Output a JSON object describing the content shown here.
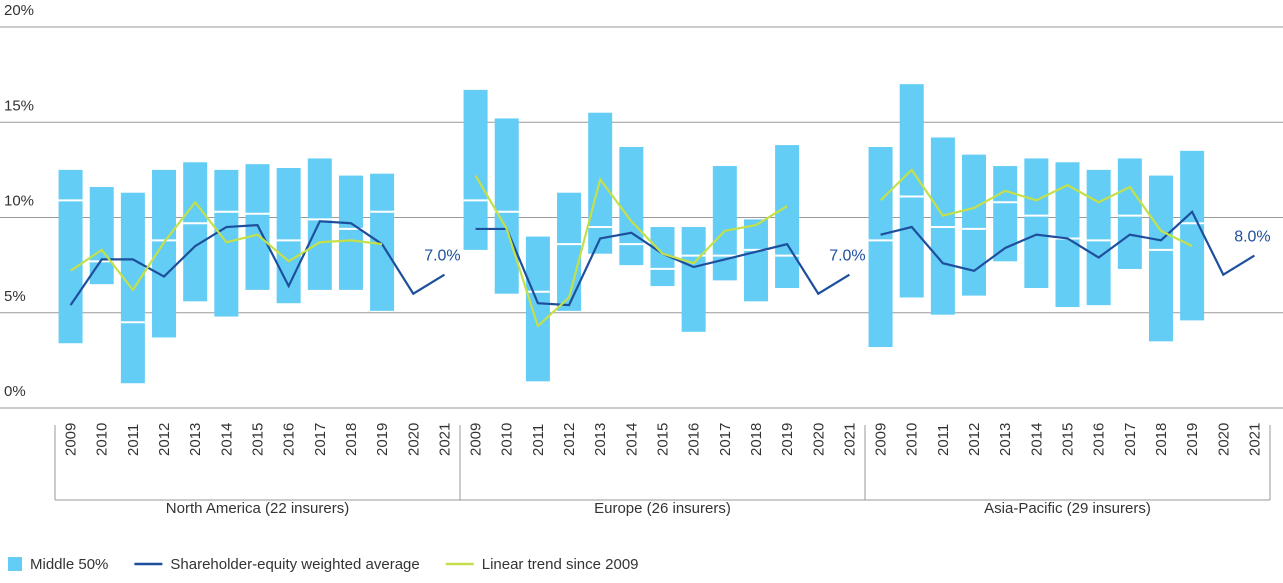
{
  "chart_data": {
    "type": "floating-bar-line",
    "ylim": [
      0,
      20
    ],
    "yticks": [
      {
        "value": 0,
        "label": "0%"
      },
      {
        "value": 5,
        "label": "5%"
      },
      {
        "value": 10,
        "label": "10%"
      },
      {
        "value": 15,
        "label": "15%"
      },
      {
        "value": 20,
        "label": "20%"
      }
    ],
    "grid": true,
    "groups": [
      {
        "label": "North America (22 insurers)",
        "categories": [
          "2009",
          "2010",
          "2011",
          "2012",
          "2013",
          "2014",
          "2015",
          "2016",
          "2017",
          "2018",
          "2019",
          "2020",
          "2021"
        ]
      },
      {
        "label": "Europe (26 insurers)",
        "categories": [
          "2009",
          "2010",
          "2011",
          "2012",
          "2013",
          "2014",
          "2015",
          "2016",
          "2017",
          "2018",
          "2019",
          "2020",
          "2021"
        ]
      },
      {
        "label": "Asia-Pacific (29 insurers)",
        "categories": [
          "2009",
          "2010",
          "2011",
          "2012",
          "2013",
          "2014",
          "2015",
          "2016",
          "2017",
          "2018",
          "2019",
          "2020",
          "2021"
        ]
      }
    ],
    "series": [
      {
        "name": "Middle 50%",
        "type": "range",
        "color": "#63cdf5",
        "low": [
          [
            3.4,
            6.5,
            1.3,
            3.7,
            5.6,
            4.8,
            6.2,
            5.5,
            6.2,
            6.2,
            5.1,
            null,
            null
          ],
          [
            8.3,
            6.0,
            1.4,
            5.1,
            8.1,
            7.5,
            6.4,
            4.0,
            6.7,
            5.6,
            6.3,
            null,
            null
          ],
          [
            3.2,
            5.8,
            4.9,
            5.9,
            7.7,
            6.3,
            5.3,
            5.4,
            7.3,
            3.5,
            4.6,
            null,
            null
          ]
        ],
        "high": [
          [
            12.5,
            11.6,
            11.3,
            12.5,
            12.9,
            12.5,
            12.8,
            12.6,
            13.1,
            12.2,
            12.3,
            null,
            null
          ],
          [
            16.7,
            15.2,
            9.0,
            11.3,
            15.5,
            13.7,
            9.5,
            9.5,
            12.7,
            9.9,
            13.8,
            null,
            null
          ],
          [
            13.7,
            17.0,
            14.2,
            13.3,
            12.7,
            13.1,
            12.9,
            12.5,
            13.1,
            12.2,
            13.5,
            null,
            null
          ]
        ],
        "median": [
          [
            10.9,
            7.7,
            4.5,
            8.8,
            9.7,
            10.3,
            10.2,
            8.8,
            9.9,
            9.4,
            10.3,
            null,
            null
          ],
          [
            10.9,
            10.3,
            6.1,
            8.6,
            9.5,
            8.6,
            7.3,
            8.0,
            8.0,
            8.3,
            8.0,
            null,
            null
          ],
          [
            8.8,
            11.1,
            9.5,
            9.4,
            10.8,
            10.1,
            8.9,
            8.8,
            10.1,
            8.3,
            9.7,
            null,
            null
          ]
        ]
      },
      {
        "name": "Shareholder-equity weighted average",
        "type": "line",
        "color": "#1e4f9c",
        "values": [
          [
            5.4,
            7.8,
            7.8,
            6.9,
            8.5,
            9.5,
            9.6,
            6.4,
            9.8,
            9.7,
            8.6,
            6.0,
            7.0
          ],
          [
            9.4,
            9.4,
            5.5,
            5.4,
            8.9,
            9.2,
            8.1,
            7.4,
            7.8,
            8.2,
            8.6,
            6.0,
            7.0
          ],
          [
            9.1,
            9.5,
            7.6,
            7.2,
            8.4,
            9.1,
            8.9,
            7.9,
            9.1,
            8.8,
            10.3,
            7.0,
            8.0
          ]
        ],
        "value_labels": [
          [
            null,
            null,
            null,
            null,
            null,
            null,
            null,
            null,
            null,
            null,
            null,
            null,
            "7.0%"
          ],
          [
            null,
            null,
            null,
            null,
            null,
            null,
            null,
            null,
            null,
            null,
            null,
            null,
            "7.0%"
          ],
          [
            null,
            null,
            null,
            null,
            null,
            null,
            null,
            null,
            null,
            null,
            null,
            null,
            "8.0%"
          ]
        ]
      },
      {
        "name": "Linear trend since 2009",
        "type": "line",
        "color": "#c3e04a",
        "values": [
          [
            7.2,
            8.3,
            6.2,
            8.7,
            10.8,
            8.7,
            9.1,
            7.7,
            8.7,
            8.8,
            8.6,
            null,
            null
          ],
          [
            12.2,
            9.4,
            4.3,
            5.8,
            12.0,
            9.8,
            8.1,
            7.6,
            9.3,
            9.6,
            10.6,
            null,
            null
          ],
          [
            10.9,
            12.5,
            10.1,
            10.5,
            11.4,
            10.9,
            11.7,
            10.8,
            11.6,
            9.3,
            8.5,
            null,
            null
          ]
        ]
      }
    ]
  }
}
